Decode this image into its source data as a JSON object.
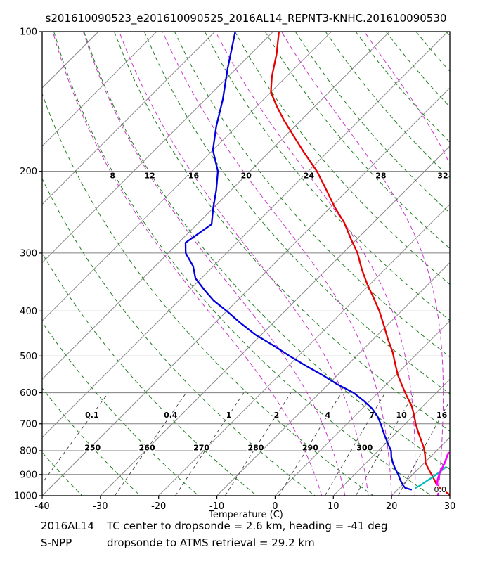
{
  "chart_data": {
    "type": "line",
    "diagram": "skew-T log-p sounding",
    "title": "s201610090523_e201610090525_2016AL14_REPNT3-KNHC.201610090530",
    "xlabel": "Temperature (C)",
    "xlim": [
      -40,
      30
    ],
    "plim": [
      100,
      1000
    ],
    "x_ticks": [
      -40,
      -30,
      -20,
      -10,
      0,
      10,
      20,
      30
    ],
    "p_ticks": [
      100,
      200,
      300,
      400,
      500,
      600,
      700,
      800,
      900,
      1000
    ],
    "skew_C_per_decade": 79.655,
    "grid": {
      "pressure_line_color": "#808080",
      "isotherm_color": "#8a8a8a"
    },
    "isotherms": {
      "start": -120,
      "end": 40,
      "step": 10
    },
    "dry_adiabats": {
      "start": 230,
      "end": 440,
      "step": 10,
      "color": "#1e7d1e",
      "labels": [
        250,
        260,
        270,
        280,
        290,
        300
      ],
      "label_pressure": 788
    },
    "moist_adiabats": {
      "values": [
        8,
        12,
        16,
        20,
        24,
        28,
        32
      ],
      "color": "#c837c8",
      "label_color": "#c020c0",
      "label_pressure": 203
    },
    "mixing_ratio_lines": {
      "values": [
        0.1,
        0.4,
        1,
        2,
        4,
        7,
        10,
        16
      ],
      "color": "#3c3c3c",
      "p_range": [
        600,
        1000
      ],
      "label_pressure": 670
    },
    "annotations": [
      {
        "text": "0.0",
        "p": 972,
        "T": 26.3
      }
    ],
    "series": [
      {
        "name": "temperature",
        "color": "#e60000",
        "width": 2.3,
        "points": [
          [
            100,
            -79
          ],
          [
            112,
            -75.5
          ],
          [
            125,
            -72.5
          ],
          [
            135,
            -70
          ],
          [
            145,
            -66.5
          ],
          [
            155,
            -63
          ],
          [
            168,
            -58.5
          ],
          [
            182,
            -54
          ],
          [
            200,
            -48.5
          ],
          [
            218,
            -44
          ],
          [
            238,
            -39.5
          ],
          [
            258,
            -35
          ],
          [
            280,
            -31
          ],
          [
            300,
            -27.5
          ],
          [
            325,
            -24
          ],
          [
            350,
            -20.5
          ],
          [
            375,
            -17
          ],
          [
            400,
            -13.8
          ],
          [
            430,
            -10.5
          ],
          [
            460,
            -7.5
          ],
          [
            490,
            -4.5
          ],
          [
            520,
            -2
          ],
          [
            550,
            0.4
          ],
          [
            580,
            3
          ],
          [
            610,
            5.5
          ],
          [
            640,
            8
          ],
          [
            670,
            10
          ],
          [
            700,
            11.8
          ],
          [
            730,
            13.7
          ],
          [
            760,
            15.6
          ],
          [
            790,
            17.4
          ],
          [
            820,
            18.9
          ],
          [
            850,
            20.2
          ],
          [
            880,
            22
          ],
          [
            910,
            23.8
          ],
          [
            940,
            25.5
          ],
          [
            960,
            26.8
          ],
          [
            975,
            28
          ],
          [
            988,
            29.2
          ],
          [
            998,
            30
          ]
        ]
      },
      {
        "name": "dewpoint",
        "color": "#0000dd",
        "width": 2.3,
        "points": [
          [
            100,
            -86.5
          ],
          [
            120,
            -81.5
          ],
          [
            140,
            -77
          ],
          [
            160,
            -73.5
          ],
          [
            180,
            -70
          ],
          [
            200,
            -65.5
          ],
          [
            220,
            -62.5
          ],
          [
            240,
            -60
          ],
          [
            260,
            -57.5
          ],
          [
            285,
            -58.8
          ],
          [
            300,
            -57
          ],
          [
            320,
            -53.5
          ],
          [
            340,
            -51
          ],
          [
            360,
            -47.5
          ],
          [
            380,
            -44
          ],
          [
            400,
            -40
          ],
          [
            425,
            -35.5
          ],
          [
            450,
            -31
          ],
          [
            475,
            -26
          ],
          [
            500,
            -21.5
          ],
          [
            525,
            -17
          ],
          [
            550,
            -12.5
          ],
          [
            575,
            -8.5
          ],
          [
            600,
            -4.2
          ],
          [
            625,
            -1
          ],
          [
            650,
            1.8
          ],
          [
            675,
            4
          ],
          [
            700,
            5.8
          ],
          [
            725,
            7.4
          ],
          [
            750,
            9
          ],
          [
            775,
            10.6
          ],
          [
            800,
            12.2
          ],
          [
            825,
            13.3
          ],
          [
            850,
            14.6
          ],
          [
            875,
            16
          ],
          [
            900,
            17.5
          ],
          [
            925,
            18.8
          ],
          [
            950,
            20.2
          ],
          [
            962,
            21
          ],
          [
            970,
            22.3
          ]
        ]
      },
      {
        "name": "dropsonde_low_level",
        "color": "#00bdbd",
        "width": 2.3,
        "points": [
          [
            962,
            22.8
          ],
          [
            952,
            23.1
          ],
          [
            940,
            23.3
          ],
          [
            925,
            23.6
          ],
          [
            910,
            23.9
          ],
          [
            895,
            24.1
          ],
          [
            880,
            24.3
          ],
          [
            868,
            24.4
          ]
        ]
      },
      {
        "name": "atms_retrieval_low_level",
        "color": "#ff00ff",
        "width": 2.6,
        "points": [
          [
            998,
            27.9
          ],
          [
            985,
            27.5
          ],
          [
            970,
            26.9
          ],
          [
            955,
            26.3
          ],
          [
            940,
            25.7
          ],
          [
            925,
            25.2
          ],
          [
            910,
            24.8
          ],
          [
            895,
            24.4
          ],
          [
            880,
            24.1
          ],
          [
            865,
            23.8
          ],
          [
            850,
            23.5
          ],
          [
            835,
            23.1
          ],
          [
            820,
            22.7
          ],
          [
            808,
            22.4
          ]
        ]
      }
    ]
  },
  "footer": {
    "storm_id": "2016AL14",
    "line1_text": "TC center to dropsonde =   2.6 km, heading = -41 deg",
    "sensor_id": "S-NPP",
    "line2_text": "dropsonde to ATMS retrieval =  29.2 km"
  }
}
